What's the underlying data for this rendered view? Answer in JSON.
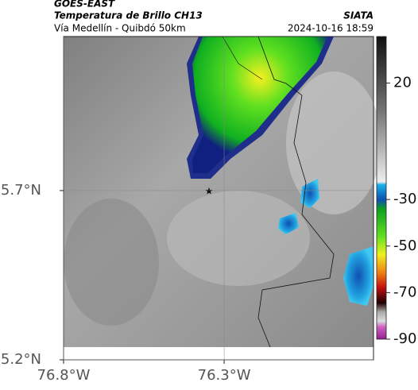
{
  "header": {
    "satellite": "GOES-EAST",
    "title": "Temperatura de Brillo CH13",
    "subtitle": "Vía Medellín - Quibdó 50km",
    "source": "SIATA",
    "datetime": "2024-10-16 18:59"
  },
  "map": {
    "xlim": [
      -76.8,
      -75.835
    ],
    "ylim": [
      5.2,
      6.155
    ],
    "xticks": [
      {
        "value": -76.8,
        "label": "76.8°W"
      },
      {
        "value": -76.3,
        "label": "76.3°W"
      }
    ],
    "yticks": [
      {
        "value": 5.7,
        "label": "5.7°N"
      },
      {
        "value": 5.2,
        "label": "5.2°N"
      }
    ]
  },
  "colorbar": {
    "ylim": [
      40,
      -90
    ],
    "ticks": [
      20,
      -30,
      -50,
      -70,
      -90
    ]
  }
}
